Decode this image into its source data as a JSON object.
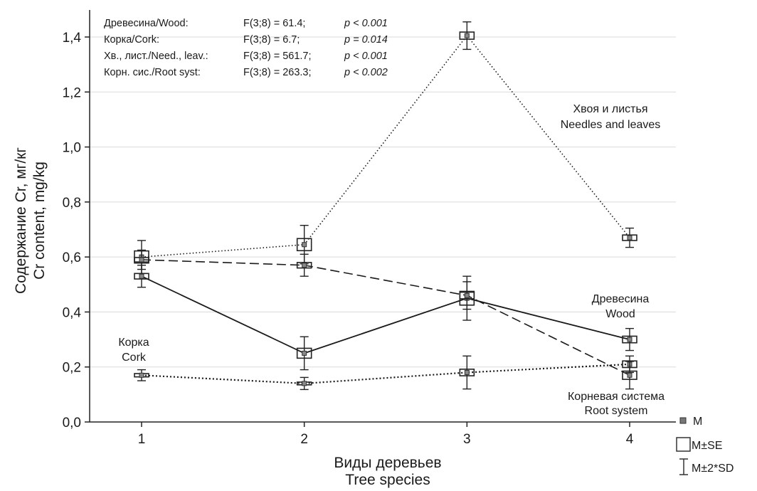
{
  "chart_data": {
    "type": "line",
    "xlabel": "Виды деревьев",
    "xlabel_en": "Tree species",
    "ylabel": "Содержание Cr, мг/кг",
    "ylabel_en": "Cr content, mg/kg",
    "x": [
      1,
      2,
      3,
      4
    ],
    "x_tick_labels": [
      "1",
      "2",
      "3",
      "4"
    ],
    "y_tick_labels": [
      "0,0",
      "0,2",
      "0,4",
      "0,6",
      "0,8",
      "1,0",
      "1,2",
      "1,4"
    ],
    "ylim": [
      0,
      1.45
    ],
    "grid": "horizontal",
    "series": [
      {
        "name": "Древесина/Wood",
        "line": "solid",
        "values": [
          0.53,
          0.25,
          0.45,
          0.3
        ],
        "se": [
          0.01,
          0.018,
          0.025,
          0.012
        ],
        "sd2": [
          0.04,
          0.06,
          0.08,
          0.04
        ]
      },
      {
        "name": "Корка/Cork",
        "line": "dotted",
        "values": [
          0.17,
          0.14,
          0.18,
          0.21
        ],
        "se": [
          0.006,
          0.005,
          0.012,
          0.012
        ],
        "sd2": [
          0.02,
          0.022,
          0.06,
          0.03
        ]
      },
      {
        "name": "Хв., лист./Need., leav.",
        "line": "dotted-sparse",
        "values": [
          0.6,
          0.645,
          1.405,
          0.67
        ],
        "se": [
          0.022,
          0.022,
          0.013,
          0.01
        ],
        "sd2": [
          0.06,
          0.07,
          0.05,
          0.035
        ]
      },
      {
        "name": "Корн. сис./Root syst",
        "line": "dashed",
        "values": [
          0.59,
          0.57,
          0.46,
          0.17
        ],
        "se": [
          0.008,
          0.01,
          0.012,
          0.015
        ],
        "sd2": [
          0.035,
          0.04,
          0.05,
          0.05
        ]
      }
    ],
    "stats": [
      {
        "label": "Древесина/Wood:",
        "f": "F(3;8) = 61.4;",
        "p": "p < 0.001"
      },
      {
        "label": "Корка/Cork:",
        "f": "F(3;8) = 6.7;",
        "p": "p = 0.014"
      },
      {
        "label": "Хв., лист./Need., leav.:",
        "f": "F(3;8) = 561.7;",
        "p": "p < 0.001"
      },
      {
        "label": "Корн. сис./Root syst:",
        "f": "F(3;8) = 263.3;",
        "p": "p < 0.002"
      }
    ],
    "annotations": {
      "needles_ru": "Хвоя и листья",
      "needles_en": "Needles and leaves",
      "wood_ru": "Древесина",
      "wood_en": "Wood",
      "cork_ru": "Корка",
      "cork_en": "Cork",
      "root_ru": "Корневая система",
      "root_en": "Root system"
    },
    "legend": {
      "position": "bottom-right",
      "items": [
        "M",
        "M±SE",
        "M±2*SD"
      ]
    }
  }
}
